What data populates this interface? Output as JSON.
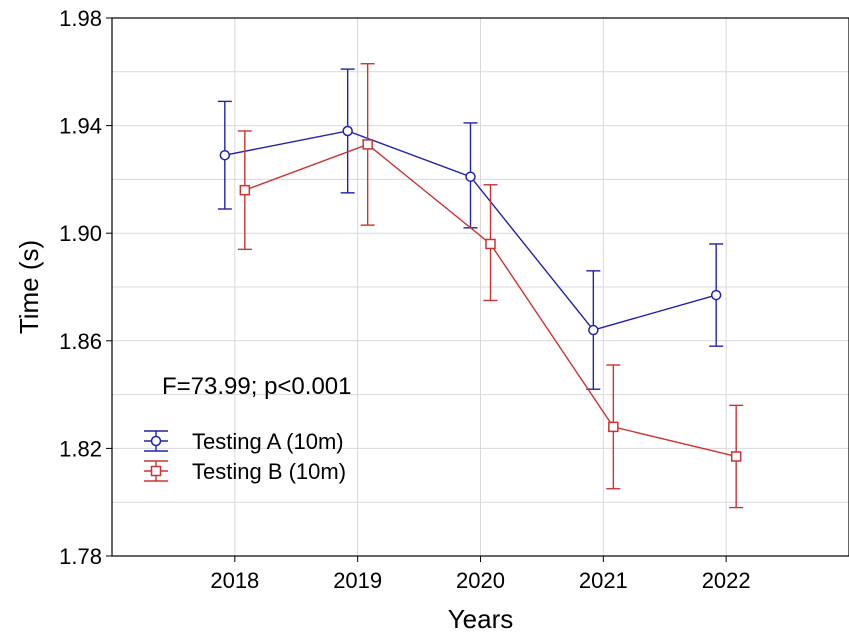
{
  "chart_data": {
    "type": "line",
    "xlabel": "Years",
    "ylabel": "Time (s)",
    "categories": [
      "2018",
      "2019",
      "2020",
      "2021",
      "2022"
    ],
    "ylim": [
      1.78,
      1.98
    ],
    "yticks": [
      "1.78",
      "1.82",
      "1.86",
      "1.90",
      "1.94",
      "1.98"
    ],
    "grid": true,
    "annotation": "F=73.99; p<0.001",
    "legend_position": "lower-left",
    "series": [
      {
        "name": "Testing A (10m)",
        "color": "#2222AA",
        "marker": "circle",
        "values": [
          1.929,
          1.938,
          1.921,
          1.864,
          1.877
        ],
        "err_low": [
          1.909,
          1.915,
          1.902,
          1.842,
          1.858
        ],
        "err_high": [
          1.949,
          1.961,
          1.941,
          1.886,
          1.896
        ]
      },
      {
        "name": "Testing B (10m)",
        "color": "#CC3333",
        "marker": "square",
        "values": [
          1.916,
          1.933,
          1.896,
          1.828,
          1.817
        ],
        "err_low": [
          1.894,
          1.903,
          1.875,
          1.805,
          1.798
        ],
        "err_high": [
          1.938,
          1.963,
          1.918,
          1.851,
          1.836
        ]
      }
    ]
  }
}
